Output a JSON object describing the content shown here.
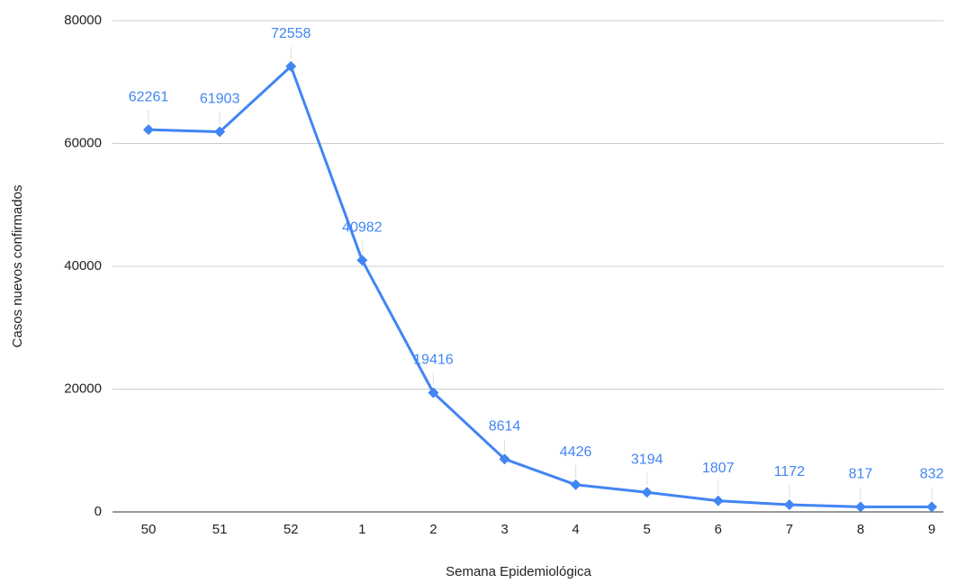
{
  "chart_data": {
    "type": "line",
    "x_label": "Semana Epidemiológica",
    "y_label": "Casos nuevos confirmados",
    "categories": [
      "50",
      "51",
      "52",
      "1",
      "2",
      "3",
      "4",
      "5",
      "6",
      "7",
      "8",
      "9"
    ],
    "values": [
      62261,
      61903,
      72558,
      40982,
      19416,
      8614,
      4426,
      3194,
      1807,
      1172,
      817,
      832
    ],
    "color": "#4285f4",
    "ylim": [
      0,
      80000
    ],
    "yticks": [
      0,
      20000,
      40000,
      60000,
      80000
    ],
    "grid": true
  }
}
